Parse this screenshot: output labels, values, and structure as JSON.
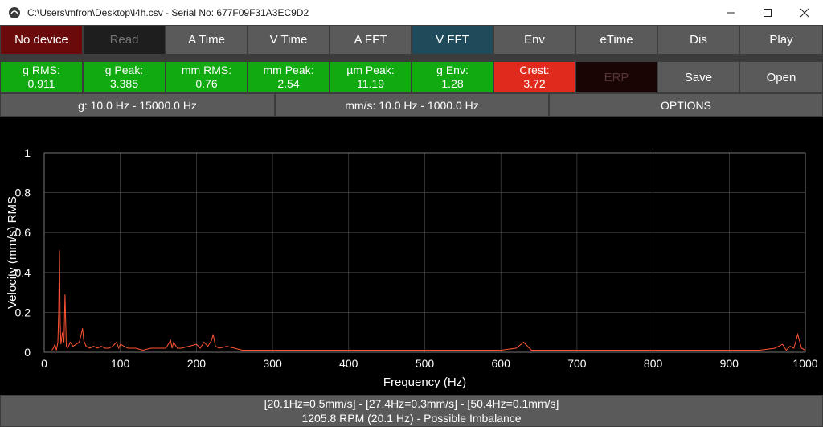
{
  "window": {
    "title": "C:\\Users\\mfroh\\Desktop\\l4h.csv - Serial No: 677F09F31A3EC9D2"
  },
  "toolbar": {
    "buttons": [
      "No device",
      "Read",
      "A Time",
      "V Time",
      "A FFT",
      "V FFT",
      "Env",
      "eTime",
      "Dis",
      "Play"
    ]
  },
  "stats": [
    {
      "label": "g RMS:",
      "value": "0.911"
    },
    {
      "label": "g Peak:",
      "value": "3.385"
    },
    {
      "label": "mm RMS:",
      "value": "0.76"
    },
    {
      "label": "mm Peak:",
      "value": "2.54"
    },
    {
      "label": "µm Peak:",
      "value": "11.19"
    },
    {
      "label": "g Env:",
      "value": "1.28"
    },
    {
      "label": "Crest:",
      "value": "3.72"
    }
  ],
  "actions": {
    "erp": "ERP",
    "save": "Save",
    "open": "Open"
  },
  "filters": {
    "g": "g: 10.0 Hz - 15000.0 Hz",
    "mm": "mm/s: 10.0 Hz - 1000.0 Hz",
    "options": "OPTIONS"
  },
  "status": {
    "line1": "[20.1Hz=0.5mm/s] - [27.4Hz=0.3mm/s] - [50.4Hz=0.1mm/s]",
    "line2": "1205.8 RPM (20.1 Hz) - Possible Imbalance"
  },
  "colors": {
    "trace": "#ff5533",
    "ok": "#11aa11",
    "alarm": "#e02a1e",
    "active_tab": "#1e4a5a"
  },
  "chart_data": {
    "type": "line",
    "xlabel": "Frequency (Hz)",
    "ylabel": "Velocity (mm/s) RMS",
    "xlim": [
      0,
      1000
    ],
    "ylim": [
      0,
      1
    ],
    "xticks": [
      0,
      100,
      200,
      300,
      400,
      500,
      600,
      700,
      800,
      900,
      1000
    ],
    "yticks": [
      0,
      0.2,
      0.4,
      0.6,
      0.8,
      1
    ],
    "ytick_labels": [
      "0",
      "0.2",
      "0.4",
      "0.6",
      "0.8",
      "1"
    ],
    "grid": true,
    "series": [
      {
        "x": [
          10,
          12,
          14,
          16,
          18,
          19,
          20.1,
          21,
          22,
          24,
          26,
          27.4,
          29,
          31,
          34,
          38,
          42,
          46,
          48,
          50.4,
          52,
          55,
          60,
          65,
          70,
          75,
          80,
          85,
          90,
          95,
          98,
          100,
          105,
          110,
          120,
          130,
          140,
          150,
          160,
          166,
          168,
          170,
          175,
          180,
          190,
          200,
          205,
          210,
          215,
          220,
          222,
          225,
          230,
          240,
          250,
          260,
          280,
          300,
          320,
          340,
          360,
          380,
          400,
          420,
          440,
          460,
          480,
          500,
          520,
          540,
          560,
          580,
          600,
          620,
          630,
          640,
          660,
          680,
          700,
          720,
          740,
          760,
          780,
          800,
          820,
          840,
          860,
          880,
          900,
          920,
          940,
          960,
          970,
          975,
          980,
          985,
          990,
          995,
          1000
        ],
        "y": [
          0.01,
          0.02,
          0.04,
          0.01,
          0.05,
          0.2,
          0.51,
          0.15,
          0.04,
          0.1,
          0.05,
          0.29,
          0.03,
          0.02,
          0.05,
          0.03,
          0.04,
          0.05,
          0.08,
          0.12,
          0.06,
          0.03,
          0.02,
          0.03,
          0.02,
          0.03,
          0.02,
          0.02,
          0.03,
          0.05,
          0.02,
          0.04,
          0.03,
          0.02,
          0.02,
          0.01,
          0.02,
          0.02,
          0.02,
          0.06,
          0.02,
          0.05,
          0.02,
          0.02,
          0.03,
          0.04,
          0.02,
          0.05,
          0.03,
          0.06,
          0.09,
          0.03,
          0.02,
          0.03,
          0.02,
          0.01,
          0.01,
          0.01,
          0.01,
          0.01,
          0.01,
          0.01,
          0.01,
          0.01,
          0.01,
          0.01,
          0.01,
          0.01,
          0.01,
          0.01,
          0.01,
          0.01,
          0.01,
          0.02,
          0.05,
          0.01,
          0.01,
          0.01,
          0.01,
          0.01,
          0.01,
          0.01,
          0.01,
          0.01,
          0.01,
          0.01,
          0.01,
          0.01,
          0.01,
          0.01,
          0.01,
          0.02,
          0.04,
          0.01,
          0.03,
          0.02,
          0.09,
          0.02,
          0.01
        ]
      }
    ]
  }
}
